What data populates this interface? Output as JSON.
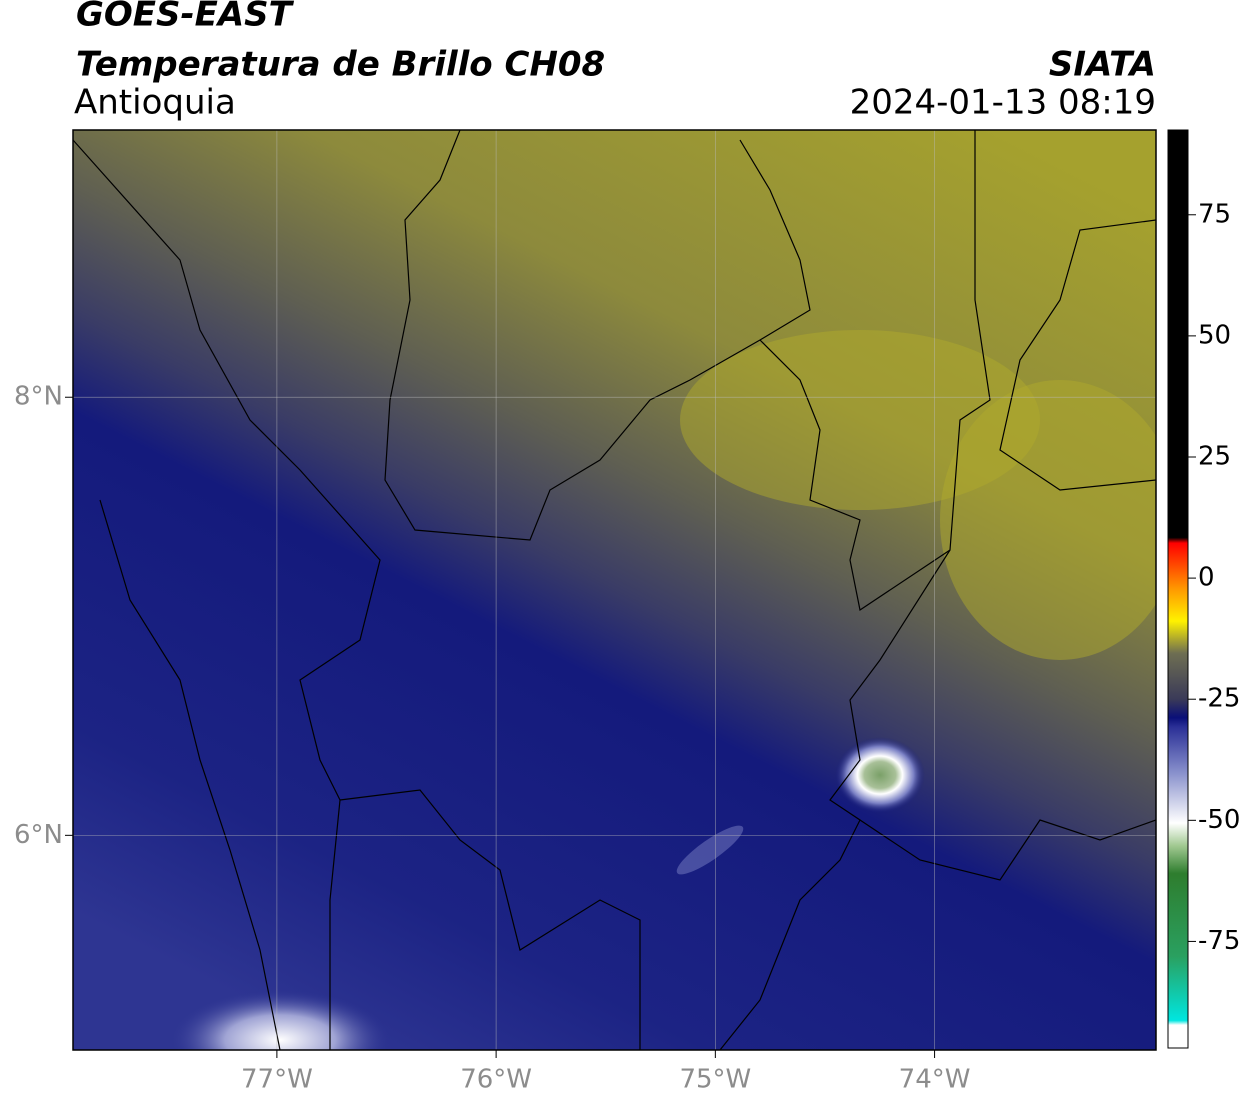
{
  "header": {
    "title": "GOES-EAST",
    "subtitle": "Temperatura de Brillo CH08",
    "region": "Antioquia",
    "source": "SIATA",
    "datetime": "2024-01-13 08:19"
  },
  "map": {
    "xlim": [
      -77.93,
      -72.99
    ],
    "ylim": [
      5.02,
      9.22
    ],
    "xticks": [
      {
        "value": -77,
        "label": "77°W"
      },
      {
        "value": -76,
        "label": "76°W"
      },
      {
        "value": -75,
        "label": "75°W"
      },
      {
        "value": -74,
        "label": "74°W"
      }
    ],
    "yticks": [
      {
        "value": 6,
        "label": "6°N"
      },
      {
        "value": 8,
        "label": "8°N"
      }
    ],
    "grid": true
  },
  "colorbar": {
    "lim": [
      -97,
      92.5
    ],
    "ticks": [
      75,
      50,
      25,
      0,
      -25,
      -50,
      -75
    ]
  }
}
